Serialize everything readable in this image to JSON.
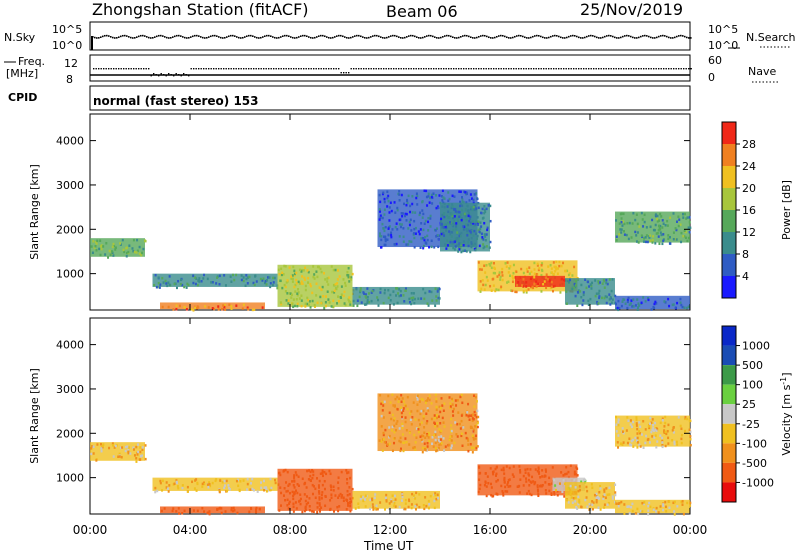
{
  "header": {
    "station": "Zhongshan Station (fitACF)",
    "beam": "Beam 06",
    "date": "25/Nov/2019"
  },
  "top_panels": {
    "nsky_label": "N.Sky",
    "nsearch_label": "N.Search",
    "nsky_ticks": [
      "10^5",
      "10^0"
    ],
    "nsearch_ticks": [
      "10^5",
      "10^0"
    ],
    "freq_label": "Freq.",
    "freq_unit": "[MHz]",
    "freq_ticks": [
      "12",
      "8"
    ],
    "nave_label": "Nave",
    "nave_ticks": [
      "60",
      "0"
    ],
    "cpid_label": "CPID",
    "cpid_text": "normal (fast stereo) 153"
  },
  "chart_data": [
    {
      "type": "heatmap",
      "quantity": "Power",
      "ylabel": "Slant Range [km]",
      "colorbar_label": "Power [dB]",
      "colorbar_ticks": [
        "4",
        "8",
        "12",
        "16",
        "20",
        "24",
        "28"
      ],
      "colorbar_range": [
        0,
        32
      ],
      "ylim": [
        180,
        4600
      ],
      "yticks": [
        1000,
        2000,
        3000,
        4000
      ],
      "xlim_hours": [
        0,
        24
      ],
      "palette": [
        "#1a1aff",
        "#2f5cc4",
        "#3a8c8c",
        "#56a85a",
        "#a8c63c",
        "#f0c020",
        "#f08020",
        "#f02818"
      ],
      "regions": [
        {
          "t": [
            0.0,
            2.2
          ],
          "r": [
            1380,
            1800
          ],
          "v": 14
        },
        {
          "t": [
            2.5,
            7.5
          ],
          "r": [
            700,
            1000
          ],
          "v": 9
        },
        {
          "t": [
            2.8,
            7.0
          ],
          "r": [
            200,
            350
          ],
          "v": 26
        },
        {
          "t": [
            7.5,
            10.5
          ],
          "r": [
            250,
            1200
          ],
          "v": 18
        },
        {
          "t": [
            10.5,
            14.0
          ],
          "r": [
            300,
            700
          ],
          "v": 10
        },
        {
          "t": [
            11.5,
            15.5
          ],
          "r": [
            1600,
            2900
          ],
          "v": 6
        },
        {
          "t": [
            14.0,
            16.0
          ],
          "r": [
            1500,
            2600
          ],
          "v": 8
        },
        {
          "t": [
            15.5,
            19.5
          ],
          "r": [
            600,
            1300
          ],
          "v": 22
        },
        {
          "t": [
            17.0,
            19.0
          ],
          "r": [
            700,
            950
          ],
          "v": 28
        },
        {
          "t": [
            19.0,
            21.0
          ],
          "r": [
            300,
            900
          ],
          "v": 10
        },
        {
          "t": [
            21.0,
            24.0
          ],
          "r": [
            1700,
            2400
          ],
          "v": 12
        },
        {
          "t": [
            21.0,
            24.0
          ],
          "r": [
            200,
            500
          ],
          "v": 7
        }
      ]
    },
    {
      "type": "heatmap",
      "quantity": "Velocity",
      "ylabel": "Slant Range [km]",
      "colorbar_label": "Velocity [m s",
      "colorbar_unit_sup": "-1",
      "colorbar_ticks": [
        "1000",
        "500",
        "100",
        "25",
        "-25",
        "-100",
        "-500",
        "-1000"
      ],
      "ylim": [
        180,
        4600
      ],
      "yticks": [
        1000,
        2000,
        3000,
        4000
      ],
      "xlim_hours": [
        0,
        24
      ],
      "palette": [
        "#e80c0c",
        "#f05a14",
        "#f0901c",
        "#f0c020",
        "#c8c8c8",
        "#6ad040",
        "#3c9a48",
        "#1a4cb4",
        "#0a28c8"
      ],
      "regions": [
        {
          "t": [
            0.0,
            2.2
          ],
          "r": [
            1380,
            1800
          ],
          "v": 0
        },
        {
          "t": [
            2.5,
            7.5
          ],
          "r": [
            700,
            1000
          ],
          "v": 0
        },
        {
          "t": [
            2.8,
            7.0
          ],
          "r": [
            200,
            350
          ],
          "v": -300
        },
        {
          "t": [
            7.5,
            10.5
          ],
          "r": [
            250,
            1200
          ],
          "v": -200
        },
        {
          "t": [
            10.5,
            14.0
          ],
          "r": [
            300,
            700
          ],
          "v": 0
        },
        {
          "t": [
            11.5,
            15.5
          ],
          "r": [
            1600,
            2900
          ],
          "v": -50
        },
        {
          "t": [
            15.5,
            19.5
          ],
          "r": [
            600,
            1300
          ],
          "v": -200
        },
        {
          "t": [
            18.5,
            19.8
          ],
          "r": [
            700,
            1000
          ],
          "v": 60
        },
        {
          "t": [
            19.0,
            21.0
          ],
          "r": [
            300,
            900
          ],
          "v": 0
        },
        {
          "t": [
            21.0,
            24.0
          ],
          "r": [
            1700,
            2400
          ],
          "v": 0
        },
        {
          "t": [
            21.0,
            24.0
          ],
          "r": [
            200,
            500
          ],
          "v": 0
        }
      ]
    }
  ],
  "x_axis": {
    "ticks": [
      "00:00",
      "04:00",
      "08:00",
      "12:00",
      "16:00",
      "20:00",
      "00:00"
    ],
    "label": "Time UT"
  }
}
